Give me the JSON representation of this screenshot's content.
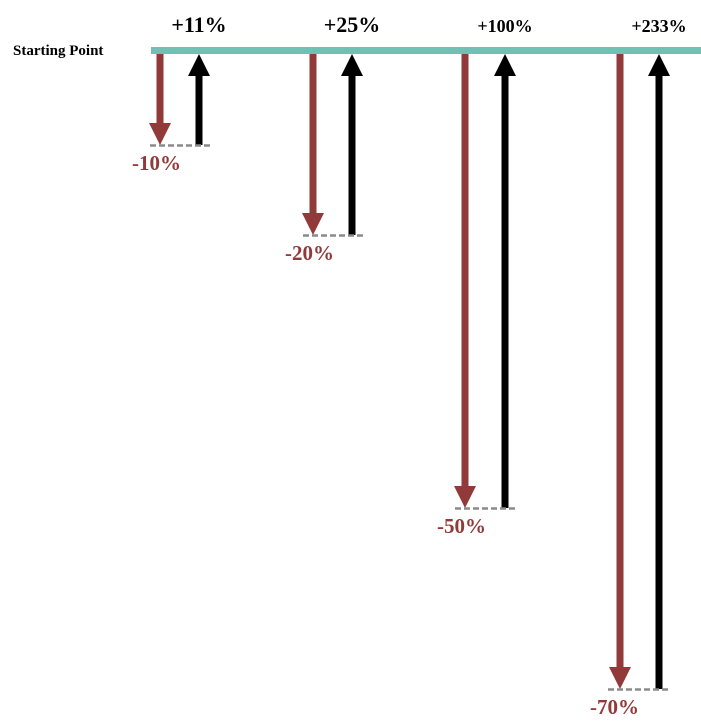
{
  "diagram": {
    "start_label": "Starting Point",
    "colors": {
      "baseline": "#6fc1b3",
      "loss": "#923a3a",
      "gain": "#000000",
      "dash": "#8a8a8a"
    },
    "cases": [
      {
        "loss_label": "-10%",
        "gain_label": "+11%",
        "loss_pct": 10,
        "gain_pct": 11
      },
      {
        "loss_label": "-20%",
        "gain_label": "+25%",
        "loss_pct": 20,
        "gain_pct": 25
      },
      {
        "loss_label": "-50%",
        "gain_label": "+100%",
        "loss_pct": 50,
        "gain_pct": 100
      },
      {
        "loss_label": "-70%",
        "gain_label": "+233%",
        "loss_pct": 70,
        "gain_pct": 233
      }
    ]
  }
}
